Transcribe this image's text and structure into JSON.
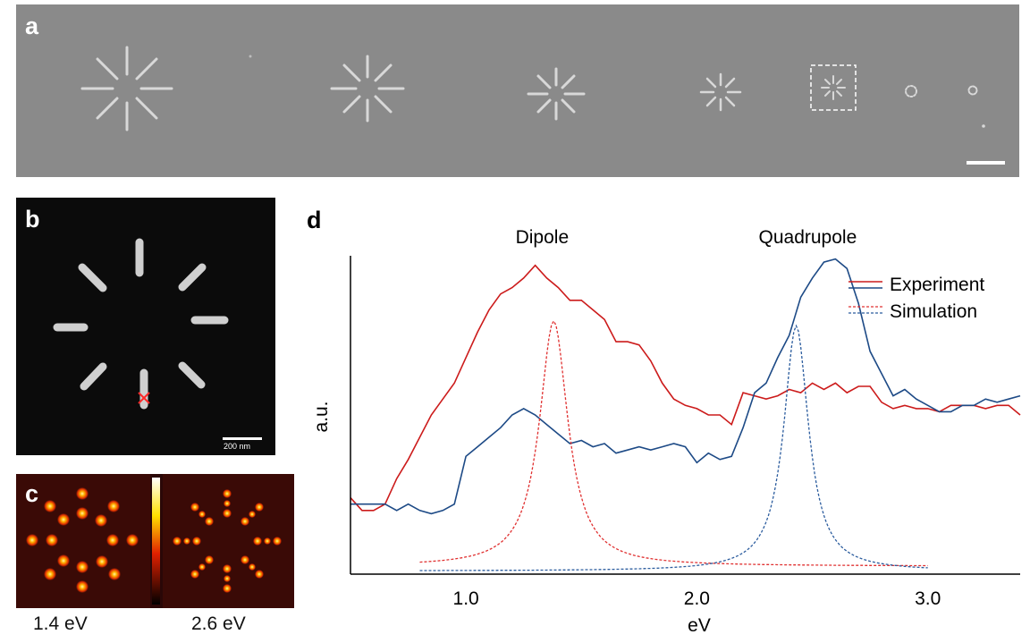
{
  "panels": {
    "a": {
      "letter": "a"
    },
    "b": {
      "letter": "b",
      "scale_label": "200 nm"
    },
    "c": {
      "letter": "c",
      "maps": [
        "1.4 eV",
        "2.6 eV"
      ]
    },
    "d": {
      "letter": "d"
    }
  },
  "colors": {
    "experiment_red": "#cc1b1b",
    "experiment_blue": "#1d4a86",
    "simulation_red": "#e03030",
    "simulation_blue": "#2b5c9e"
  },
  "chart_data": {
    "type": "line",
    "title": "",
    "xlabel": "eV",
    "ylabel": "a.u.",
    "xlim": [
      0.5,
      3.4
    ],
    "ylim": [
      0,
      1.0
    ],
    "xticks": [
      "1.0",
      "2.0",
      "3.0"
    ],
    "xtick_values": [
      1.0,
      2.0,
      3.0
    ],
    "grid": false,
    "legend_position": "top-right",
    "legend": [
      "Experiment",
      "Simulation"
    ],
    "annotations": [
      {
        "text": "Dipole",
        "x": 1.33
      },
      {
        "text": "Quadrupole",
        "x": 2.48
      }
    ],
    "series": [
      {
        "group": "Experiment",
        "color": "#cc1b1b",
        "dash": false,
        "x": [
          0.5,
          0.55,
          0.6,
          0.65,
          0.7,
          0.75,
          0.8,
          0.85,
          0.9,
          0.95,
          1.0,
          1.05,
          1.1,
          1.15,
          1.2,
          1.25,
          1.3,
          1.35,
          1.4,
          1.45,
          1.5,
          1.55,
          1.6,
          1.65,
          1.7,
          1.75,
          1.8,
          1.85,
          1.9,
          1.95,
          2.0,
          2.05,
          2.1,
          2.15,
          2.2,
          2.25,
          2.3,
          2.35,
          2.4,
          2.45,
          2.5,
          2.55,
          2.6,
          2.65,
          2.7,
          2.75,
          2.8,
          2.85,
          2.9,
          2.95,
          3.0,
          3.05,
          3.1,
          3.15,
          3.2,
          3.25,
          3.3,
          3.35,
          3.4
        ],
        "y": [
          0.24,
          0.2,
          0.2,
          0.22,
          0.3,
          0.36,
          0.43,
          0.5,
          0.55,
          0.6,
          0.68,
          0.76,
          0.83,
          0.88,
          0.9,
          0.93,
          0.97,
          0.93,
          0.9,
          0.86,
          0.86,
          0.83,
          0.8,
          0.73,
          0.73,
          0.72,
          0.67,
          0.6,
          0.55,
          0.53,
          0.52,
          0.5,
          0.5,
          0.47,
          0.57,
          0.56,
          0.55,
          0.56,
          0.58,
          0.57,
          0.6,
          0.58,
          0.6,
          0.57,
          0.59,
          0.59,
          0.54,
          0.52,
          0.53,
          0.52,
          0.52,
          0.51,
          0.53,
          0.53,
          0.53,
          0.52,
          0.53,
          0.53,
          0.5
        ]
      },
      {
        "group": "Experiment",
        "color": "#1d4a86",
        "dash": false,
        "x": [
          0.5,
          0.55,
          0.6,
          0.65,
          0.7,
          0.75,
          0.8,
          0.85,
          0.9,
          0.95,
          1.0,
          1.05,
          1.1,
          1.15,
          1.2,
          1.25,
          1.3,
          1.35,
          1.4,
          1.45,
          1.5,
          1.55,
          1.6,
          1.65,
          1.7,
          1.75,
          1.8,
          1.85,
          1.9,
          1.95,
          2.0,
          2.05,
          2.1,
          2.15,
          2.2,
          2.25,
          2.3,
          2.35,
          2.4,
          2.45,
          2.5,
          2.55,
          2.6,
          2.65,
          2.7,
          2.75,
          2.8,
          2.85,
          2.9,
          2.95,
          3.0,
          3.05,
          3.1,
          3.15,
          3.2,
          3.25,
          3.3,
          3.35,
          3.4
        ],
        "y": [
          0.22,
          0.22,
          0.22,
          0.22,
          0.2,
          0.22,
          0.2,
          0.19,
          0.2,
          0.22,
          0.37,
          0.4,
          0.43,
          0.46,
          0.5,
          0.52,
          0.5,
          0.47,
          0.44,
          0.41,
          0.42,
          0.4,
          0.41,
          0.38,
          0.39,
          0.4,
          0.39,
          0.4,
          0.41,
          0.4,
          0.35,
          0.38,
          0.36,
          0.37,
          0.46,
          0.57,
          0.6,
          0.68,
          0.75,
          0.87,
          0.93,
          0.98,
          0.99,
          0.96,
          0.85,
          0.7,
          0.63,
          0.56,
          0.58,
          0.55,
          0.53,
          0.51,
          0.51,
          0.53,
          0.53,
          0.55,
          0.54,
          0.55,
          0.56
        ]
      },
      {
        "group": "Simulation",
        "color": "#e03030",
        "dash": true,
        "peak": 1.38,
        "width": 0.075,
        "amplitude": 0.77,
        "baseline": 0.025,
        "range": [
          0.8,
          3.0
        ]
      },
      {
        "group": "Simulation",
        "color": "#2b5c9e",
        "dash": true,
        "peak": 2.43,
        "width": 0.065,
        "amplitude": 0.77,
        "baseline": 0.01,
        "range": [
          0.8,
          3.0
        ]
      }
    ]
  }
}
